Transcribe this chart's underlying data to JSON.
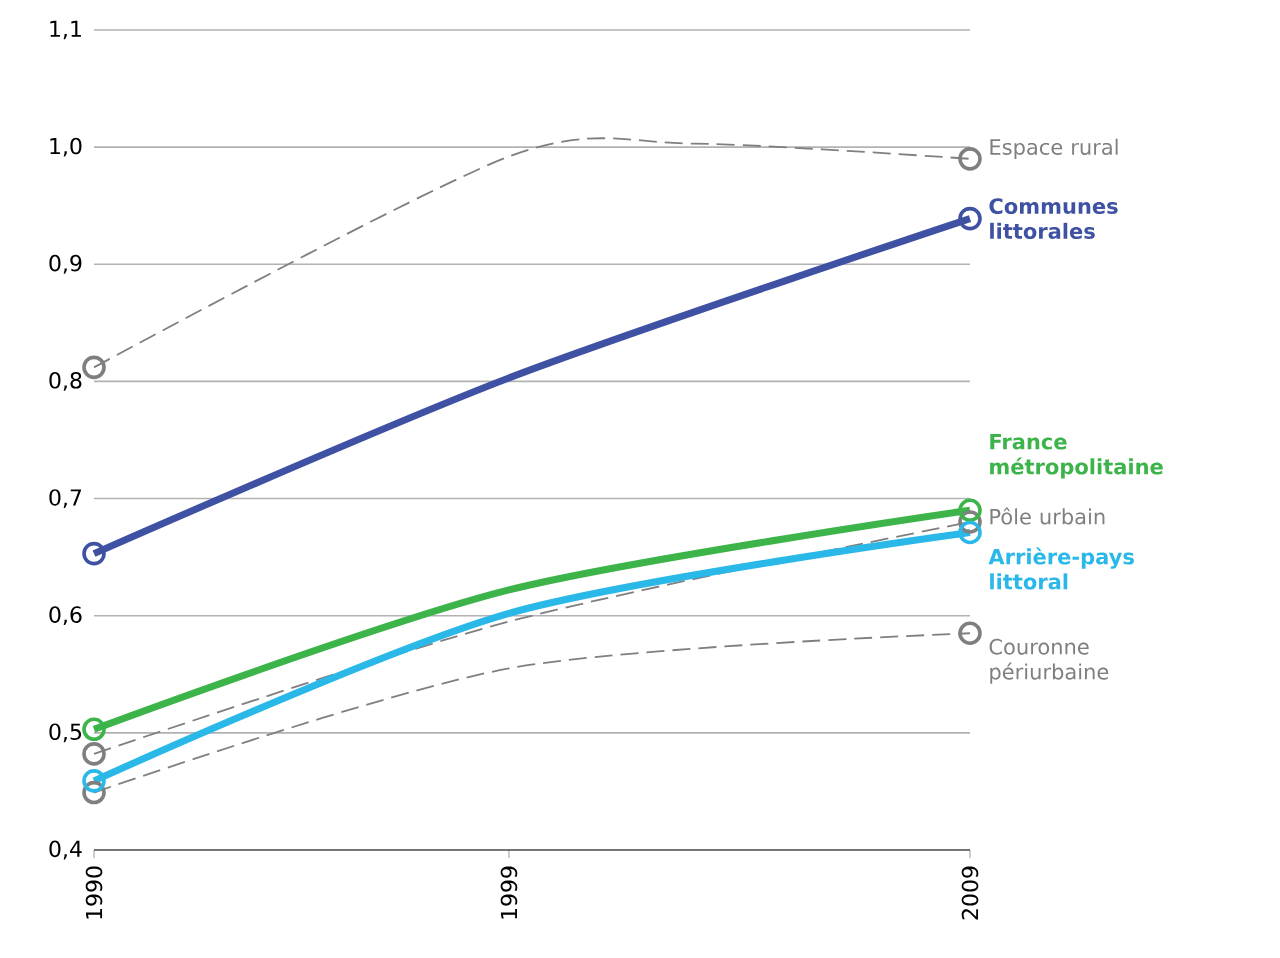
{
  "chart_data": {
    "type": "line",
    "x": [
      1990,
      1999,
      2009
    ],
    "series": [
      {
        "name": "Espace rural",
        "color": "#7f7f7f",
        "line_style": "dashed",
        "x": [
          1990,
          1999,
          2003,
          2009
        ],
        "values": [
          0.812,
          0.992,
          1.003,
          0.99
        ]
      },
      {
        "name": "Pôle urbain",
        "color": "#7f7f7f",
        "line_style": "dashed",
        "values": [
          0.482,
          0.595,
          0.68
        ]
      },
      {
        "name": "Couronne périurbaine",
        "color": "#7f7f7f",
        "line_style": "dashed",
        "values": [
          0.449,
          0.555,
          0.585
        ]
      },
      {
        "name": "Communes littorales",
        "color": "#3f51a3",
        "line_style": "solid",
        "values": [
          0.653,
          0.803,
          0.939
        ]
      },
      {
        "name": "France métropolitaine",
        "color": "#3cb44a",
        "line_style": "solid",
        "values": [
          0.503,
          0.622,
          0.69
        ]
      },
      {
        "name": "Arrière-pays littoral",
        "color": "#29b8e8",
        "line_style": "solid",
        "values": [
          0.459,
          0.602,
          0.671
        ]
      }
    ],
    "xlim": [
      1990,
      2009
    ],
    "xticks": [
      1990,
      1999,
      2009
    ],
    "ylim": [
      0.4,
      1.1
    ],
    "yticks": [
      {
        "value": 0.4,
        "label": "0,4"
      },
      {
        "value": 0.5,
        "label": "0,5"
      },
      {
        "value": 0.6,
        "label": "0,6"
      },
      {
        "value": 0.7,
        "label": "0,7"
      },
      {
        "value": 0.8,
        "label": "0,8"
      },
      {
        "value": 0.9,
        "label": "0,9"
      },
      {
        "value": 1.0,
        "label": "1,0"
      },
      {
        "value": 1.1,
        "label": "1,1"
      }
    ],
    "grid": "y",
    "legend": false,
    "marker": "circle"
  }
}
